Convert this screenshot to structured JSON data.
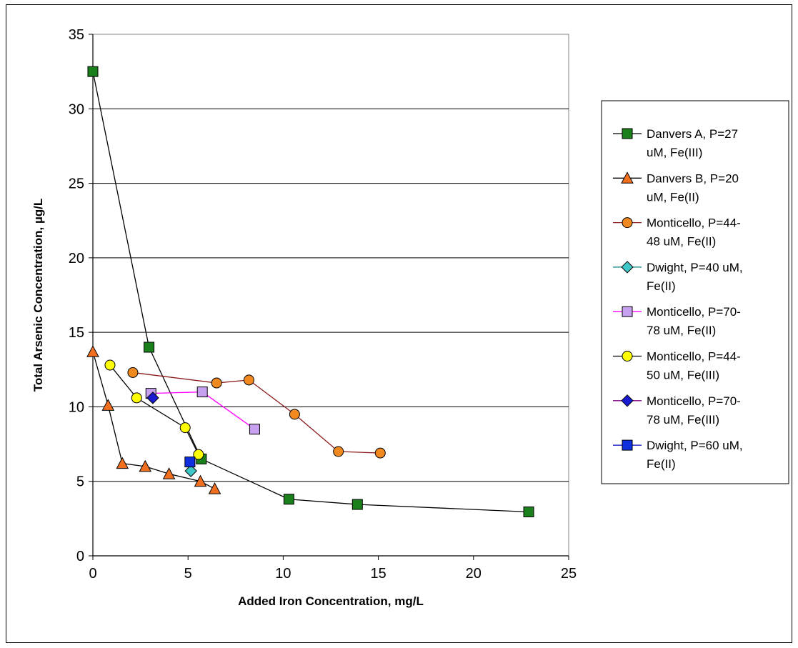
{
  "chart_data": {
    "type": "scatter",
    "title": "",
    "xlabel": "Added Iron Concentration, mg/L",
    "ylabel": "Total Arsenic Concentration, µg/L",
    "xlim": [
      0,
      25
    ],
    "ylim": [
      0,
      35
    ],
    "x_ticks": [
      "0",
      "5",
      "10",
      "15",
      "20",
      "25"
    ],
    "y_ticks": [
      "0",
      "5",
      "10",
      "15",
      "20",
      "25",
      "30",
      "35"
    ],
    "grid": "horizontal",
    "legend_position": "right",
    "series": [
      {
        "name": "Danvers A, P=27 uM, Fe(III)",
        "legend_lines": [
          "Danvers A, P=27",
          "uM, Fe(III)"
        ],
        "color": "#000000",
        "marker": "square",
        "marker_color": "#1a7f1a",
        "x": [
          0,
          2.95,
          5.7,
          10.3,
          13.9,
          22.9
        ],
        "y": [
          32.5,
          14.0,
          6.5,
          3.8,
          3.45,
          2.95
        ]
      },
      {
        "name": "Danvers B, P=20 uM, Fe(II)",
        "legend_lines": [
          "Danvers B, P=20",
          "uM, Fe(II)"
        ],
        "color": "#000000",
        "marker": "triangle",
        "marker_color": "#f07020",
        "x": [
          0,
          0.8,
          1.55,
          2.75,
          4.0,
          5.65,
          6.4
        ],
        "y": [
          13.7,
          10.1,
          6.2,
          6.0,
          5.5,
          5.0,
          4.5
        ]
      },
      {
        "name": "Monticello, P=44-48 uM, Fe(II)",
        "legend_lines": [
          "Monticello, P=44-",
          "48 uM, Fe(II)"
        ],
        "color": "#8b1a1a",
        "marker": "circle",
        "marker_color": "#f08a20",
        "x": [
          2.1,
          6.5,
          8.2,
          10.6,
          12.9,
          15.1
        ],
        "y": [
          12.3,
          11.6,
          11.8,
          9.5,
          7.0,
          6.9
        ]
      },
      {
        "name": "Dwight, P=40 uM, Fe(II)",
        "legend_lines": [
          "Dwight, P=40 uM,",
          "Fe(II)"
        ],
        "color": "#008080",
        "marker": "diamond",
        "marker_color": "#40c8c8",
        "x": [
          5.15
        ],
        "y": [
          5.7
        ]
      },
      {
        "name": "Monticello, P=70-78 uM, Fe(II)",
        "legend_lines": [
          "Monticello, P=70-",
          "78 uM, Fe(II)"
        ],
        "color": "#ff00ff",
        "marker": "square",
        "marker_color": "#c8a0f0",
        "x": [
          3.05,
          5.75,
          8.5
        ],
        "y": [
          10.9,
          11.0,
          8.5
        ]
      },
      {
        "name": "Monticello, P=44-50 uM, Fe(III)",
        "legend_lines": [
          "Monticello, P=44-",
          "50 uM, Fe(III)"
        ],
        "color": "#000000",
        "marker": "circle",
        "marker_color": "#ffff00",
        "x": [
          0.9,
          2.3,
          4.85,
          5.55
        ],
        "y": [
          12.8,
          10.6,
          8.6,
          6.8
        ]
      },
      {
        "name": "Monticello, P=70-78 uM, Fe(III)",
        "legend_lines": [
          "Monticello, P=70-",
          "78 uM, Fe(III)"
        ],
        "color": "#800080",
        "marker": "diamond",
        "marker_color": "#1a1ad0",
        "x": [
          3.15
        ],
        "y": [
          10.6
        ]
      },
      {
        "name": "Dwight, P=60 uM, Fe(II)",
        "legend_lines": [
          "Dwight, P=60 uM,",
          "Fe(II)"
        ],
        "color": "#0000c0",
        "marker": "square",
        "marker_color": "#1030e0",
        "x": [
          5.1
        ],
        "y": [
          6.3
        ]
      }
    ]
  }
}
